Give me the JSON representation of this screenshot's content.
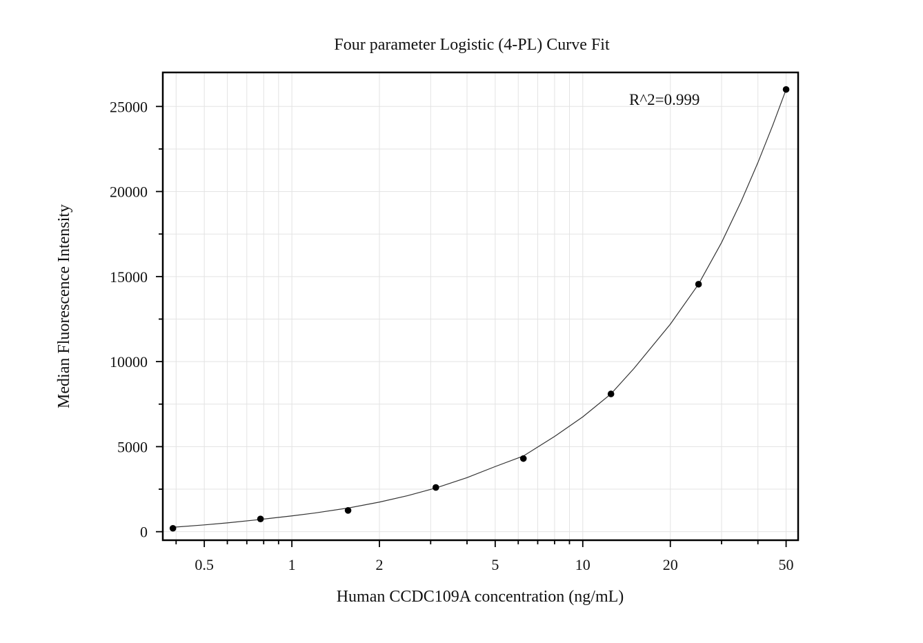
{
  "chart_data": {
    "type": "scatter",
    "title": "Four parameter Logistic (4-PL) Curve Fit",
    "xlabel": "Human CCDC109A concentration (ng/mL)",
    "ylabel": "Median Fluorescence Intensity",
    "x_scale": "log",
    "xlim": [
      0.36,
      55
    ],
    "ylim": [
      -500,
      27000
    ],
    "x_ticks": [
      0.5,
      1,
      2,
      5,
      10,
      20,
      50
    ],
    "x_tick_labels": [
      "0.5",
      "1",
      "2",
      "5",
      "10",
      "20",
      "50"
    ],
    "y_ticks": [
      0,
      5000,
      10000,
      15000,
      20000,
      25000
    ],
    "y_tick_labels": [
      "0",
      "5000",
      "10000",
      "15000",
      "20000",
      "25000"
    ],
    "grid": true,
    "annotation": "R^2=0.999",
    "series": [
      {
        "x": [
          0.39,
          0.78,
          1.56,
          3.125,
          6.25,
          12.5,
          25,
          50
        ],
        "y": [
          200,
          750,
          1250,
          2600,
          4300,
          8100,
          14550,
          26000
        ]
      }
    ],
    "fit_curve": {
      "model": "4PL",
      "x": [
        0.39,
        0.5,
        0.6,
        0.78,
        1.0,
        1.2,
        1.56,
        2.0,
        2.5,
        3.125,
        4.0,
        5.0,
        6.25,
        8.0,
        10.0,
        12.5,
        15.0,
        20.0,
        25.0,
        30.0,
        35.0,
        40.0,
        45.0,
        50.0
      ],
      "y": [
        260,
        400,
        520,
        720,
        930,
        1100,
        1390,
        1740,
        2120,
        2570,
        3180,
        3830,
        4450,
        5600,
        6750,
        8100,
        9600,
        12200,
        14550,
        17000,
        19400,
        21700,
        23900,
        26000
      ]
    },
    "colors": {
      "points": "#000000",
      "curve": "#333333",
      "grid": "#e3e3e3",
      "frame": "#000000"
    }
  }
}
